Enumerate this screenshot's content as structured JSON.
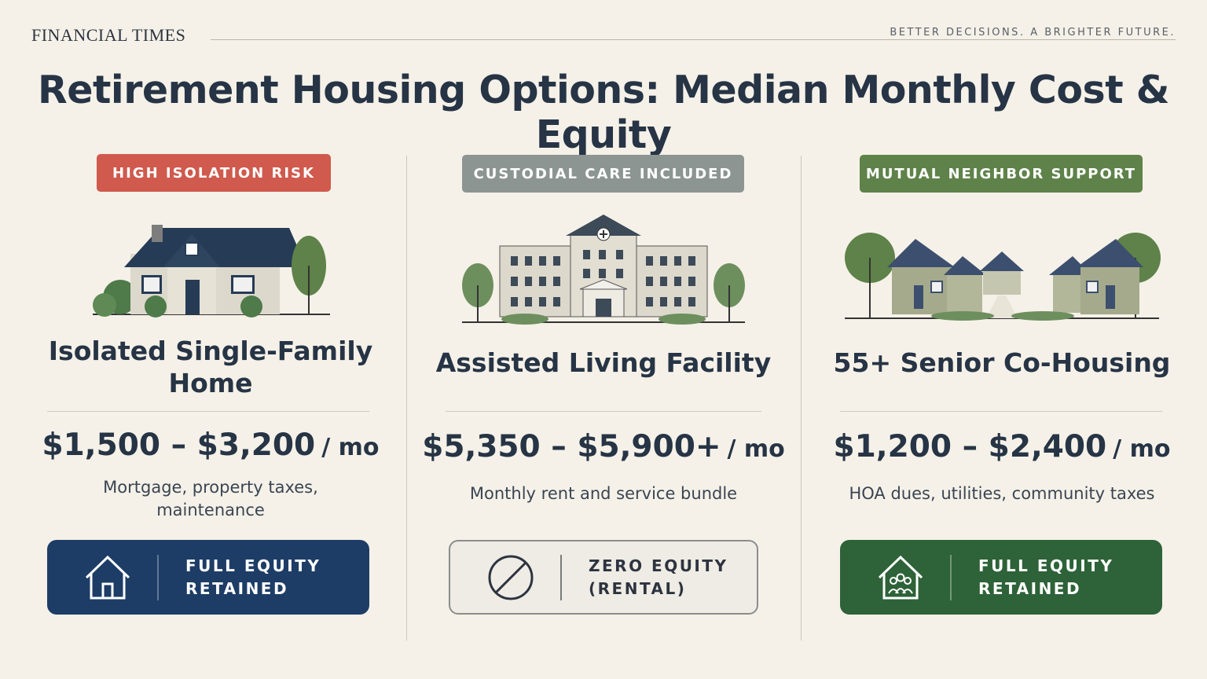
{
  "header": {
    "publisher": "FINANCIAL TIMES",
    "tagline": "BETTER DECISIONS. A BRIGHTER FUTURE."
  },
  "title": "Retirement Housing Options: Median Monthly Cost & Equity",
  "options": [
    {
      "badge": "HIGH ISOLATION RISK",
      "name": "Isolated Single-Family Home",
      "cost": "$1,500 – $3,200",
      "unit": "/ mo",
      "description": "Mortgage, property taxes, maintenance",
      "equity": "FULL EQUITY RETAINED"
    },
    {
      "badge": "CUSTODIAL CARE INCLUDED",
      "name": "Assisted Living Facility",
      "cost": "$5,350 – $5,900+",
      "unit": "/ mo",
      "description": "Monthly rent and service bundle",
      "equity": "ZERO EQUITY (RENTAL)"
    },
    {
      "badge": "MUTUAL NEIGHBOR SUPPORT",
      "name": "55+ Senior Co-Housing",
      "cost": "$1,200 – $2,400",
      "unit": "/ mo",
      "description": "HOA dues, utilities, community taxes",
      "equity": "FULL EQUITY RETAINED"
    }
  ]
}
